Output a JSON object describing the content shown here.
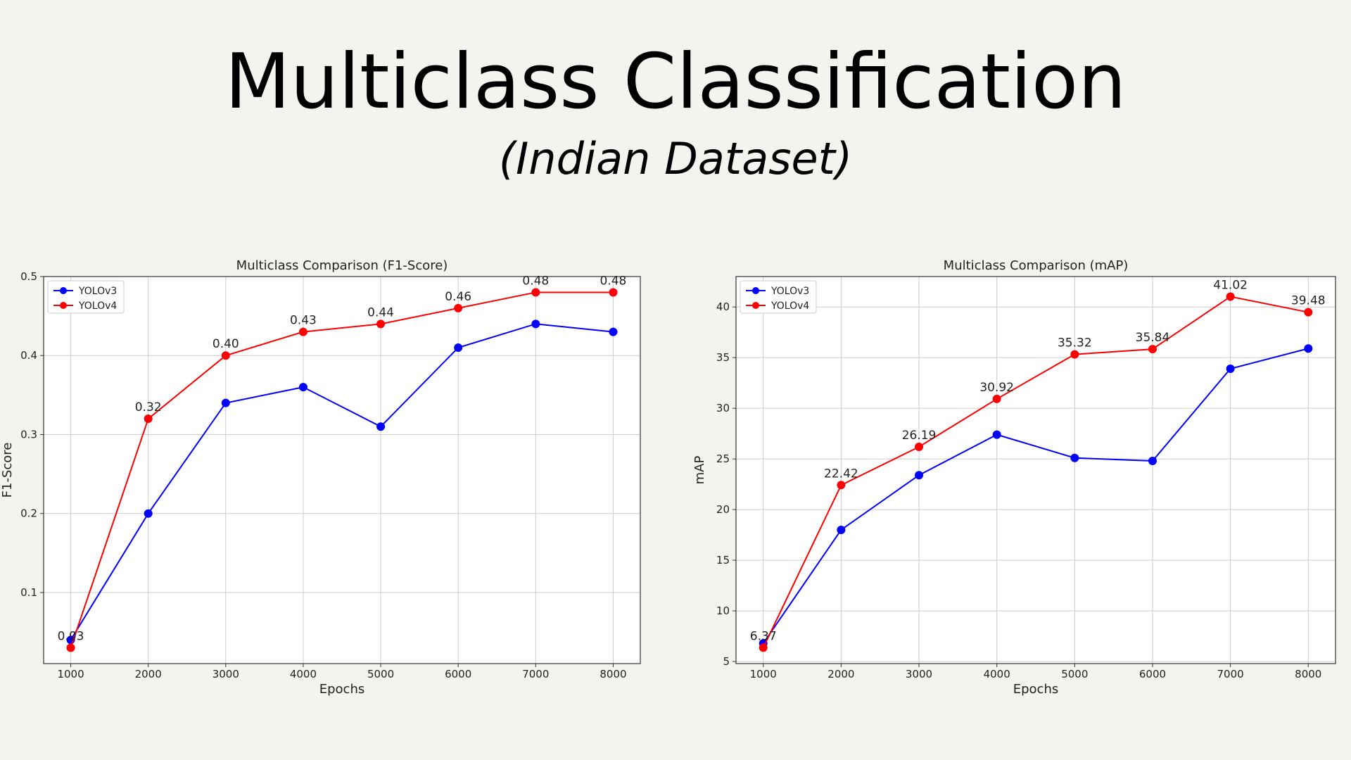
{
  "slide": {
    "title": "Multiclass Classification",
    "subtitle": "(Indian Dataset)"
  },
  "colors": {
    "background": "#f3f3ef",
    "yolov3": "#0000ff",
    "yolov4": "#ff0000"
  },
  "chart_data": [
    {
      "type": "line",
      "title": "Multiclass Comparison (F1-Score)",
      "xlabel": "Epochs",
      "ylabel": "F1-Score",
      "x": [
        1000,
        2000,
        3000,
        4000,
        5000,
        6000,
        7000,
        8000
      ],
      "xticks": [
        "1000",
        "2000",
        "3000",
        "4000",
        "5000",
        "6000",
        "7000",
        "8000"
      ],
      "yticks": [
        "0.1",
        "0.2",
        "0.3",
        "0.4",
        "0.5"
      ],
      "ylim": [
        0.01,
        0.5
      ],
      "grid": true,
      "legend": "top-left",
      "series": [
        {
          "name": "YOLOv3",
          "color": "#0000ff",
          "values": [
            0.04,
            0.2,
            0.34,
            0.36,
            0.31,
            0.41,
            0.44,
            0.43
          ]
        },
        {
          "name": "YOLOv4",
          "color": "#ff0000",
          "values": [
            0.03,
            0.32,
            0.4,
            0.43,
            0.44,
            0.46,
            0.48,
            0.48
          ],
          "labels": [
            "0.03",
            "0.32",
            "0.40",
            "0.43",
            "0.44",
            "0.46",
            "0.48",
            "0.48"
          ]
        }
      ]
    },
    {
      "type": "line",
      "title": "Multiclass Comparison (mAP)",
      "xlabel": "Epochs",
      "ylabel": "mAP",
      "x": [
        1000,
        2000,
        3000,
        4000,
        5000,
        6000,
        7000,
        8000
      ],
      "xticks": [
        "1000",
        "2000",
        "3000",
        "4000",
        "5000",
        "6000",
        "7000",
        "8000"
      ],
      "yticks": [
        "5",
        "10",
        "15",
        "20",
        "25",
        "30",
        "35",
        "40"
      ],
      "ylim": [
        4.8,
        43
      ],
      "grid": true,
      "legend": "top-left",
      "series": [
        {
          "name": "YOLOv3",
          "color": "#0000ff",
          "values": [
            6.8,
            18.0,
            23.4,
            27.4,
            25.1,
            24.8,
            33.9,
            35.9
          ]
        },
        {
          "name": "YOLOv4",
          "color": "#ff0000",
          "values": [
            6.37,
            22.42,
            26.19,
            30.92,
            35.32,
            35.84,
            41.02,
            39.48
          ],
          "labels": [
            "6.37",
            "22.42",
            "26.19",
            "30.92",
            "35.32",
            "35.84",
            "41.02",
            "39.48"
          ]
        }
      ]
    }
  ]
}
